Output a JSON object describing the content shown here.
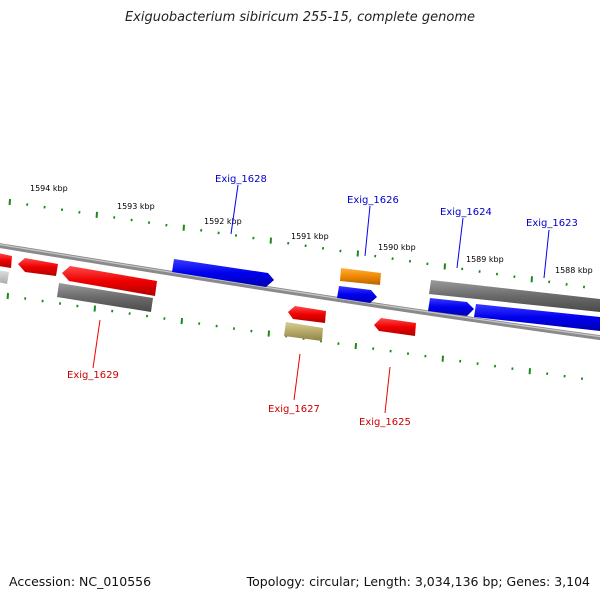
{
  "title": "Exiguobacterium sibiricum 255-15, complete genome",
  "footer": {
    "accession": "Accession: NC_010556",
    "summary": "Topology: circular; Length: 3,034,136 bp; Genes: 3,104"
  },
  "colors": {
    "forward_gene": "#0000ee",
    "reverse_gene": "#ee0000",
    "gray_gene": "#6a6a6a",
    "orange_gene": "#ee8800",
    "olive_gene": "#b7a968",
    "tick": "#1a8a1a",
    "backbone": "#8a8a8a",
    "label_forward": "#0000cc",
    "label_reverse": "#cc0000"
  },
  "scale_labels": [
    "1594 kbp",
    "1593 kbp",
    "1592 kbp",
    "1591 kbp",
    "1590 kbp",
    "1589 kbp",
    "1588 kbp"
  ],
  "gene_labels": {
    "forward": [
      "Exig_1628",
      "Exig_1626",
      "Exig_1624",
      "Exig_1623"
    ],
    "reverse": [
      "Exig_1629",
      "Exig_1627",
      "Exig_1625"
    ]
  }
}
